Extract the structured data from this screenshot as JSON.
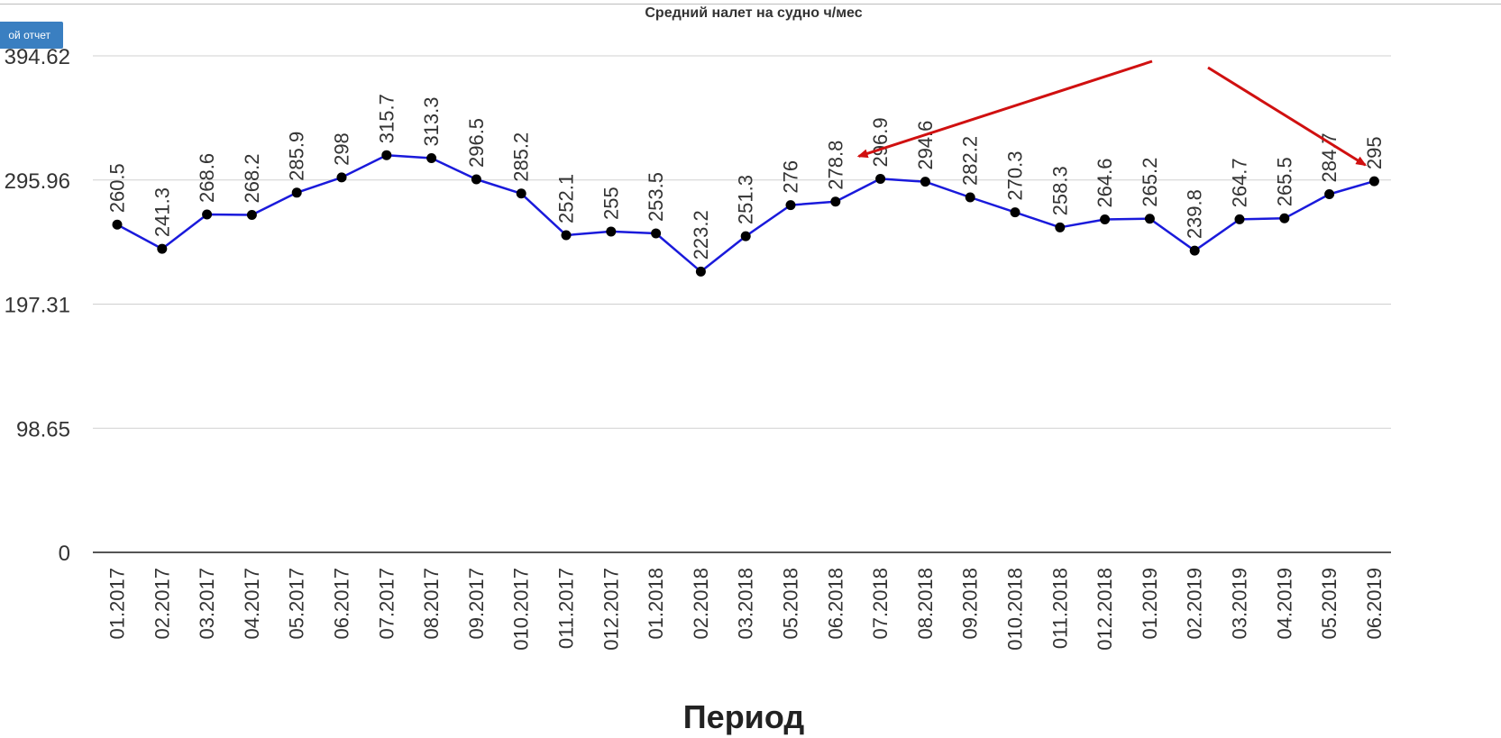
{
  "report_button": {
    "label": "ой отчет"
  },
  "chart_data": {
    "type": "line",
    "title": "Средний налет на судно ч/мес",
    "xlabel": "Период",
    "ylabel": "",
    "ylim": [
      0,
      394.62
    ],
    "y_ticks": [
      "0",
      "98.65",
      "197.31",
      "295.96",
      "394.62"
    ],
    "y_tick_values": [
      0,
      98.65,
      197.31,
      295.96,
      394.62
    ],
    "grid": true,
    "categories": [
      "01.2017",
      "02.2017",
      "03.2017",
      "04.2017",
      "05.2017",
      "06.2017",
      "07.2017",
      "08.2017",
      "09.2017",
      "010.2017",
      "011.2017",
      "012.2017",
      "01.2018",
      "02.2018",
      "03.2018",
      "05.2018",
      "06.2018",
      "07.2018",
      "08.2018",
      "09.2018",
      "010.2018",
      "011.2018",
      "012.2018",
      "01.2019",
      "02.2019",
      "03.2019",
      "04.2019",
      "05.2019",
      "06.2019"
    ],
    "values": [
      260.5,
      241.3,
      268.6,
      268.2,
      285.9,
      298,
      315.7,
      313.3,
      296.5,
      285.2,
      252.1,
      255,
      253.5,
      223.2,
      251.3,
      276,
      278.8,
      296.9,
      294.6,
      282.2,
      270.3,
      258.3,
      264.6,
      265.2,
      239.8,
      264.7,
      265.5,
      284.7,
      295
    ],
    "data_labels": [
      "260.5",
      "241.3",
      "268.6",
      "268.2",
      "285.9",
      "298",
      "315.7",
      "313.3",
      "296.5",
      "285.2",
      "252.1",
      "255",
      "253.5",
      "223.2",
      "251.3",
      "276",
      "278.8",
      "296.9",
      "294.6",
      "282.2",
      "270.3",
      "258.3",
      "264.6",
      "265.2",
      "239.8",
      "264.7",
      "265.5",
      "284.7",
      "295"
    ],
    "colors": {
      "line": "#1a1adb",
      "marker": "#000000",
      "grid": "#d0d0d0",
      "axis": "#555555",
      "annotation_arrow": "#d01010"
    },
    "annotations": [
      {
        "type": "arrow",
        "from_index": 17,
        "color": "#d01010"
      },
      {
        "type": "arrow",
        "from_index": 28,
        "color": "#d01010"
      }
    ]
  }
}
